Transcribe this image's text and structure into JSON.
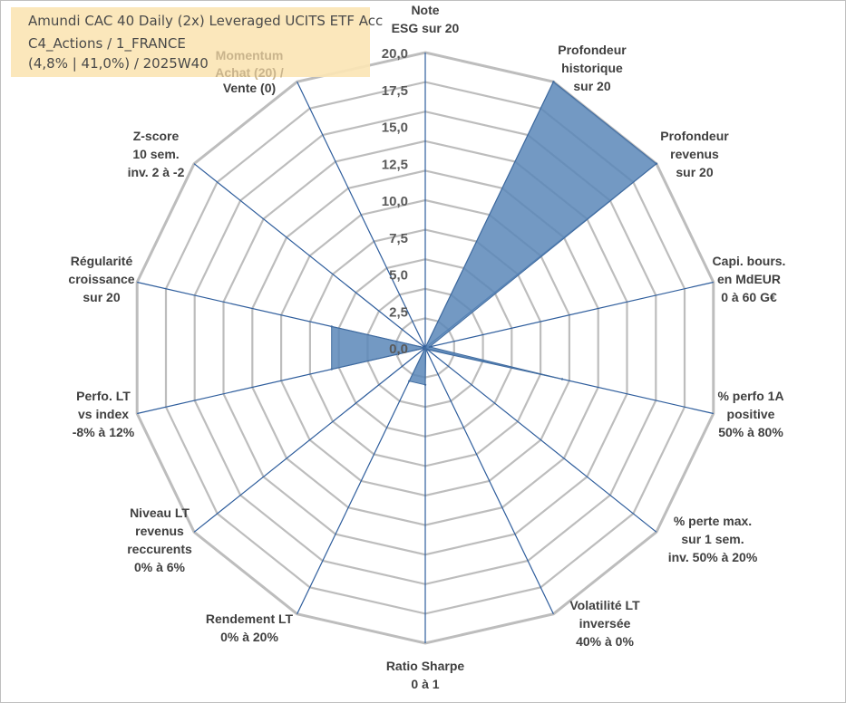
{
  "title": {
    "line1": "Amundi CAC 40 Daily (2x) Leveraged UCITS ETF Acc",
    "line2": "C4_Actions / 1_FRANCE",
    "line3": "(4,8% | 41,0%) / 2025W40"
  },
  "colors": {
    "fill": "#5b87b9",
    "stroke": "#3f6a9e",
    "spoke": "#2e5d9c",
    "grid": "#bdbdbd"
  },
  "chart_data": {
    "type": "radar",
    "rmax": 20,
    "tick_labels": [
      "0,0",
      "2,5",
      "5,0",
      "7,5",
      "10,0",
      "12,5",
      "15,0",
      "17,5",
      "20,0"
    ],
    "grid_rings": 10,
    "axes": [
      [
        "Note",
        "ESG sur 20"
      ],
      [
        "Profondeur",
        "historique",
        "sur 20"
      ],
      [
        "Profondeur",
        "revenus",
        "sur 20"
      ],
      [
        "Capi. bours.",
        "en MdEUR",
        "0 à 60 G€"
      ],
      [
        "% perfo 1A",
        "positive",
        "50% à 80%"
      ],
      [
        "% perte max.",
        "sur 1 sem.",
        "inv. 50% à 20%"
      ],
      [
        "Volatilité LT",
        "inversée",
        "40% à 0%"
      ],
      [
        "Ratio Sharpe",
        "0 à 1"
      ],
      [
        "Rendement LT",
        "0% à 20%"
      ],
      [
        "Niveau LT",
        "revenus",
        "reccurents",
        "0% à 6%"
      ],
      [
        "Perfo. LT",
        "vs index",
        "-8% à 12%"
      ],
      [
        "Régularité",
        "croissance",
        "sur 20"
      ],
      [
        "Z-score",
        "10 sem.",
        "inv. 2 à -2"
      ],
      [
        "Momentum",
        "Achat (20) /",
        "Vente (0)"
      ]
    ],
    "values": [
      0,
      20,
      20,
      0.3,
      9.5,
      0.2,
      0.1,
      2.5,
      2.5,
      0,
      6.5,
      6.5,
      0,
      0
    ]
  }
}
